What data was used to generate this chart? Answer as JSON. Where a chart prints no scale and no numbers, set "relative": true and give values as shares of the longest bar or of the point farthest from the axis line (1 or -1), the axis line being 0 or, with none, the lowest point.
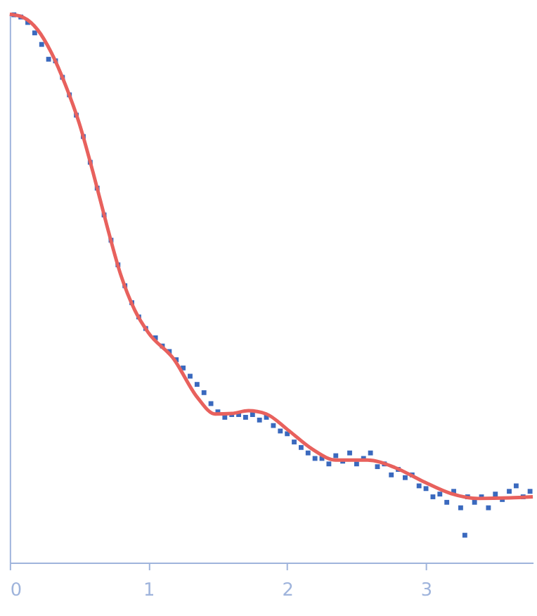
{
  "chart_data": {
    "type": "scatter",
    "relative": true,
    "xlim": [
      0,
      3.77
    ],
    "xticks": [
      0,
      1,
      2,
      3
    ],
    "grid": false,
    "series": [
      {
        "type": "scatter",
        "color": "#3a69be",
        "marker": "square",
        "x": [
          0.03,
          0.08,
          0.13,
          0.18,
          0.23,
          0.28,
          0.33,
          0.38,
          0.43,
          0.48,
          0.53,
          0.58,
          0.63,
          0.68,
          0.73,
          0.78,
          0.83,
          0.88,
          0.93,
          0.98,
          1.05,
          1.1,
          1.15,
          1.2,
          1.25,
          1.3,
          1.35,
          1.4,
          1.45,
          1.5,
          1.55,
          1.6,
          1.65,
          1.7,
          1.75,
          1.8,
          1.85,
          1.9,
          1.95,
          2.0,
          2.05,
          2.1,
          2.15,
          2.2,
          2.25,
          2.3,
          2.35,
          2.4,
          2.45,
          2.5,
          2.55,
          2.6,
          2.65,
          2.7,
          2.75,
          2.8,
          2.85,
          2.9,
          2.95,
          3.0,
          3.05,
          3.1,
          3.15,
          3.2,
          3.25,
          3.28,
          3.3,
          3.35,
          3.4,
          3.45,
          3.5,
          3.55,
          3.6,
          3.65,
          3.7,
          3.75
        ],
        "values": [
          0.999,
          0.995,
          0.985,
          0.966,
          0.945,
          0.918,
          0.915,
          0.885,
          0.853,
          0.816,
          0.777,
          0.73,
          0.683,
          0.634,
          0.588,
          0.543,
          0.505,
          0.474,
          0.448,
          0.427,
          0.41,
          0.395,
          0.385,
          0.37,
          0.355,
          0.34,
          0.325,
          0.31,
          0.29,
          0.275,
          0.265,
          0.27,
          0.27,
          0.265,
          0.27,
          0.26,
          0.265,
          0.25,
          0.24,
          0.235,
          0.22,
          0.21,
          0.2,
          0.19,
          0.19,
          0.18,
          0.195,
          0.185,
          0.2,
          0.18,
          0.19,
          0.2,
          0.175,
          0.18,
          0.16,
          0.17,
          0.155,
          0.16,
          0.14,
          0.135,
          0.12,
          0.125,
          0.11,
          0.13,
          0.1,
          0.05,
          0.12,
          0.11,
          0.12,
          0.1,
          0.125,
          0.115,
          0.13,
          0.14,
          0.12,
          0.13
        ]
      },
      {
        "type": "line",
        "color": "#e8615d",
        "line_style": "solid",
        "x": [
          0,
          0.1,
          0.2,
          0.3,
          0.4,
          0.5,
          0.6,
          0.7,
          0.8,
          0.9,
          1.0,
          1.18,
          1.35,
          1.48,
          1.6,
          1.72,
          1.85,
          2.0,
          2.18,
          2.35,
          2.58,
          2.78,
          2.98,
          3.18,
          3.38,
          3.6,
          3.77
        ],
        "values": [
          1.0,
          0.994,
          0.972,
          0.93,
          0.872,
          0.802,
          0.712,
          0.615,
          0.525,
          0.461,
          0.419,
          0.372,
          0.302,
          0.271,
          0.272,
          0.277,
          0.271,
          0.243,
          0.207,
          0.187,
          0.187,
          0.173,
          0.148,
          0.126,
          0.117,
          0.118,
          0.12
        ]
      }
    ]
  }
}
